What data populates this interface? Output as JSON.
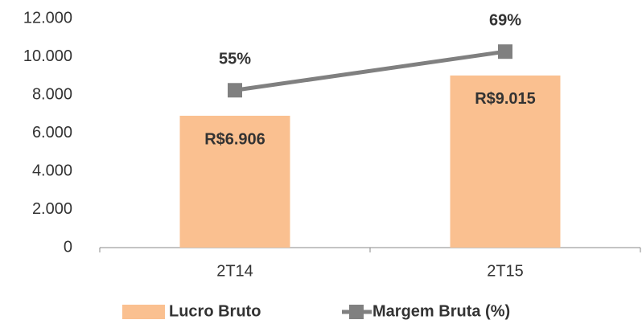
{
  "chart_data": {
    "type": "bar_line",
    "categories": [
      "2T14",
      "2T15"
    ],
    "series": [
      {
        "name": "Lucro Bruto",
        "type": "bar",
        "color": "#fac090",
        "values": [
          6906,
          9015
        ],
        "value_labels": [
          "R$6.906",
          "R$9.015"
        ]
      },
      {
        "name": "Margem Bruta (%)",
        "type": "line",
        "axis": "y2",
        "color": "#808080",
        "values": [
          55,
          69
        ],
        "value_labels": [
          "55%",
          "69%"
        ]
      }
    ],
    "ylim": [
      0,
      12000
    ],
    "yticks": [
      0,
      {
        "value": 2000,
        "label": "2.000"
      },
      {
        "value": 4000,
        "label": "4.000"
      },
      {
        "value": 6000,
        "label": "6.000"
      },
      {
        "value": 8000,
        "label": "8.000"
      },
      {
        "value": 10000,
        "label": "10.000"
      },
      {
        "value": 12000,
        "label": "12.000"
      }
    ],
    "y2lim": [
      -2,
      81
    ],
    "legend": "bottom"
  }
}
